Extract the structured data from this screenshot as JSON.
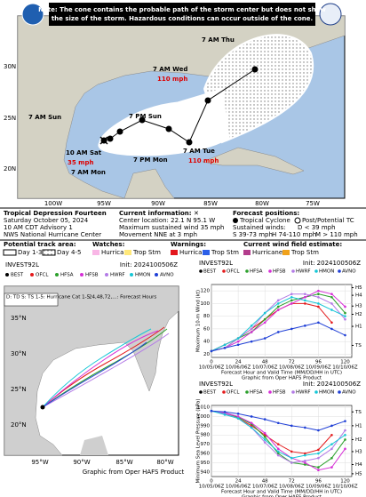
{
  "storm_graphic": {
    "note": [
      "Note: The cone contains the probable path of the storm center but does not show",
      "the size of the storm. Hazardous conditions can occur outside of the cone."
    ],
    "track_labels": [
      "7 AM Thu",
      "7 AM Wed",
      "110 mph",
      "7 AM Sun",
      "7 PM Sun",
      "10 AM Sat",
      "35 mph",
      "7 AM Mon",
      "7 PM Mon",
      "7 AM Tue",
      "110 mph"
    ],
    "lat_labels": [
      "30N",
      "25N",
      "20N"
    ],
    "lon_labels": [
      "100W",
      "95W",
      "90W",
      "85W",
      "80W",
      "75W"
    ],
    "info": [
      "Tropical Depression Fourteen",
      "Saturday October 05, 2024",
      "10 AM CDT Advisory 1",
      "NWS National Hurricane Center"
    ],
    "current": [
      "Current information: ✕",
      "Center location: 22.1 N 95.1 W",
      "Maximum sustained wind 35 mph",
      "Movement NNE at 3 mph"
    ],
    "forecast": [
      "Forecast positions:",
      "Tropical Cyclone",
      "Post/Potential TC",
      "Sustained winds:",
      "D < 39 mph",
      "S 39-73 mph",
      "H 74-110 mph",
      "M > 110 mph"
    ],
    "legend": [
      "Potential track area:",
      "Day 1-3",
      "Day 4-5",
      "Watches:",
      "Hurricane",
      "Trop Stm",
      "Warnings:",
      "Hurricane",
      "Trop Stm",
      "Current wind field estimate:",
      "Hurricane",
      "Trop Stm"
    ]
  },
  "track_map": {
    "title": "INVEST92L",
    "init": "Init: 2024100506Z",
    "models": [
      "BEST",
      "OFCL",
      "HFSA",
      "HFSB",
      "HWRF",
      "HMON",
      "AVNO"
    ],
    "key": [
      "D: TD  S: TS  1-5: Hurricane Cat 1-5",
      "24,48,72,...: Forecast Hours"
    ],
    "lat_labels": [
      "35°N",
      "30°N",
      "25°N",
      "20°N"
    ],
    "lon_labels": [
      "95°W",
      "90°W",
      "85°W",
      "80°W"
    ],
    "credit": "Graphic from Oper HAFS Product"
  },
  "chart_data": [
    {
      "type": "line",
      "title": "INVEST92L",
      "subtitle": "Init: 2024100506Z",
      "ylabel": "Maximum 10-m Wind (kt)",
      "xlabel": "Forecast Hour and Valid Time (MM/DD/HH in UTC)",
      "credit": "Graphic from Oper HAFS Product",
      "x": [
        0,
        12,
        24,
        36,
        48,
        60,
        72,
        84,
        96,
        108,
        120
      ],
      "xlim": [
        0,
        126
      ],
      "xticks": [
        0,
        24,
        48,
        72,
        96,
        120
      ],
      "xtick_dates": [
        "10/05/06Z",
        "10/06/06Z",
        "10/07/06Z",
        "10/08/06Z",
        "10/09/06Z",
        "10/10/06Z"
      ],
      "ylim": [
        15,
        130
      ],
      "yticks": [
        20,
        40,
        60,
        80,
        100,
        120
      ],
      "y2lim": [
        15,
        130
      ],
      "y2ticks": [
        {
          "value": 34,
          "label": "TS"
        },
        {
          "value": 64,
          "label": "H1"
        },
        {
          "value": 83,
          "label": "H2"
        },
        {
          "value": 96,
          "label": "H3"
        },
        {
          "value": 113,
          "label": "H4"
        },
        {
          "value": 125,
          "label": "H5"
        }
      ],
      "series": [
        {
          "name": "BEST",
          "color": "#000000",
          "values": [
            25,
            null,
            null,
            null,
            null,
            null,
            null,
            null,
            null,
            null,
            null
          ]
        },
        {
          "name": "OFCL",
          "color": "#e41a1c",
          "values": [
            25,
            35,
            45,
            60,
            75,
            90,
            100,
            100,
            95,
            70,
            null
          ]
        },
        {
          "name": "HFSA",
          "color": "#2ca02c",
          "values": [
            25,
            30,
            45,
            55,
            75,
            95,
            105,
            110,
            115,
            110,
            85
          ]
        },
        {
          "name": "HFSB",
          "color": "#d62fd6",
          "values": [
            25,
            30,
            40,
            55,
            70,
            90,
            100,
            110,
            120,
            115,
            95
          ]
        },
        {
          "name": "HWRF",
          "color": "#b37be6",
          "values": [
            25,
            30,
            45,
            60,
            85,
            105,
            115,
            115,
            110,
            100,
            75
          ]
        },
        {
          "name": "HMON",
          "color": "#17c7d6",
          "values": [
            25,
            35,
            45,
            65,
            85,
            100,
            110,
            105,
            100,
            90,
            80
          ]
        },
        {
          "name": "AVNO",
          "color": "#1f3fd6",
          "values": [
            25,
            30,
            35,
            40,
            45,
            55,
            60,
            65,
            70,
            60,
            50
          ]
        }
      ]
    },
    {
      "type": "line",
      "title": "INVEST92L",
      "subtitle": "Init: 2024100506Z",
      "ylabel": "Minimum Sea Level Pressure (hPa)",
      "xlabel": "Forecast Hour and Valid Time (MM/DD/HH in UTC)",
      "credit": "Graphic from Oper HAFS Product",
      "x": [
        0,
        12,
        24,
        36,
        48,
        60,
        72,
        84,
        96,
        108,
        120
      ],
      "xlim": [
        0,
        126
      ],
      "xticks": [
        0,
        24,
        48,
        72,
        96,
        120
      ],
      "xtick_dates": [
        "10/05/06Z",
        "10/06/06Z",
        "10/07/06Z",
        "10/08/06Z",
        "10/09/06Z",
        "10/10/06Z"
      ],
      "ylim": [
        935,
        1012
      ],
      "yticks": [
        940,
        950,
        960,
        970,
        980,
        990,
        1000,
        1010
      ],
      "y2lim": [
        935,
        1012
      ],
      "y2ticks": [
        {
          "value": 1005,
          "label": "TS"
        },
        {
          "value": 990,
          "label": "H1"
        },
        {
          "value": 975,
          "label": "H2"
        },
        {
          "value": 962,
          "label": "H3"
        },
        {
          "value": 948,
          "label": "H4"
        },
        {
          "value": 938,
          "label": "H5"
        }
      ],
      "series": [
        {
          "name": "BEST",
          "color": "#000000",
          "values": [
            1006,
            null,
            null,
            null,
            null,
            null,
            null,
            null,
            null,
            null,
            null
          ]
        },
        {
          "name": "OFCL",
          "color": "#e41a1c",
          "values": [
            1006,
            1003,
            998,
            990,
            980,
            970,
            962,
            960,
            964,
            980,
            null
          ]
        },
        {
          "name": "HFSA",
          "color": "#2ca02c",
          "values": [
            1006,
            1004,
            999,
            992,
            978,
            960,
            950,
            948,
            945,
            955,
            975
          ]
        },
        {
          "name": "HFSB",
          "color": "#d62fd6",
          "values": [
            1006,
            1004,
            1000,
            993,
            982,
            965,
            955,
            950,
            942,
            945,
            965
          ]
        },
        {
          "name": "HWRF",
          "color": "#b37be6",
          "values": [
            1006,
            1003,
            998,
            988,
            972,
            958,
            950,
            952,
            955,
            965,
            985
          ]
        },
        {
          "name": "HMON",
          "color": "#17c7d6",
          "values": [
            1006,
            1002,
            998,
            988,
            975,
            962,
            955,
            958,
            960,
            970,
            980
          ]
        },
        {
          "name": "AVNO",
          "color": "#1f3fd6",
          "values": [
            1006,
            1005,
            1003,
            1000,
            997,
            993,
            990,
            988,
            985,
            990,
            995
          ]
        }
      ]
    }
  ]
}
